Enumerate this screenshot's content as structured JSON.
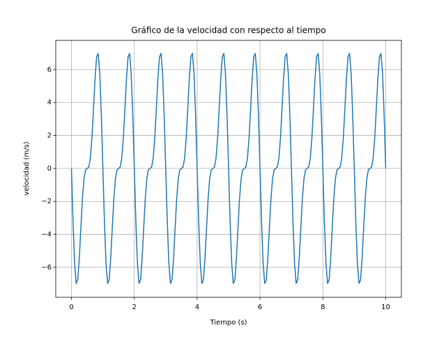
{
  "chart_data": {
    "type": "line",
    "title": "Gráfico de la velocidad con respecto al tiempo",
    "xlabel": "Tiempo (s)",
    "ylabel": "velocidad (m/s)",
    "xlim": [
      -0.5,
      10.5
    ],
    "ylim": [
      -7.82,
      7.77
    ],
    "xticks": [
      0,
      2,
      4,
      6,
      8,
      10
    ],
    "yticks": [
      {
        "value": -6,
        "label": "−6"
      },
      {
        "value": -4,
        "label": "−4"
      },
      {
        "value": -2,
        "label": "−2"
      },
      0,
      2,
      4,
      6
    ],
    "grid": true,
    "x": [
      0,
      0.05,
      0.1,
      0.15,
      0.2,
      0.25,
      0.3,
      0.35,
      0.4,
      0.45,
      0.5,
      0.55,
      0.6,
      0.65,
      0.7,
      0.75,
      0.8,
      0.85,
      0.9,
      0.95,
      1,
      1.05,
      1.1,
      1.15,
      1.2,
      1.25,
      1.3,
      1.35,
      1.4,
      1.45,
      1.5,
      1.55,
      1.6,
      1.65,
      1.7,
      1.75,
      1.8,
      1.85,
      1.9,
      1.95,
      2,
      2.05,
      2.1,
      2.15,
      2.2,
      2.25,
      2.3,
      2.35,
      2.4,
      2.45,
      2.5,
      2.55,
      2.6,
      2.65,
      2.7,
      2.75,
      2.8,
      2.85,
      2.9,
      2.95,
      3,
      3.05,
      3.1,
      3.15,
      3.2,
      3.25,
      3.3,
      3.35,
      3.4,
      3.45,
      3.5,
      3.55,
      3.6,
      3.65,
      3.7,
      3.75,
      3.8,
      3.85,
      3.9,
      3.95,
      4,
      4.05,
      4.1,
      4.15,
      4.2,
      4.25,
      4.3,
      4.35,
      4.4,
      4.45,
      4.5,
      4.55,
      4.6,
      4.65,
      4.7,
      4.75,
      4.8,
      4.85,
      4.9,
      4.95,
      5,
      5.05,
      5.1,
      5.15,
      5.2,
      5.25,
      5.3,
      5.35,
      5.4,
      5.45,
      5.5,
      5.55,
      5.6,
      5.65,
      5.7,
      5.75,
      5.8,
      5.85,
      5.9,
      5.95,
      6,
      6.05,
      6.1,
      6.15,
      6.2,
      6.25,
      6.3,
      6.35,
      6.4,
      6.45,
      6.5,
      6.55,
      6.6,
      6.65,
      6.7,
      6.75,
      6.8,
      6.85,
      6.9,
      6.95,
      7,
      7.05,
      7.1,
      7.15,
      7.2,
      7.25,
      7.3,
      7.35,
      7.4,
      7.45,
      7.5,
      7.55,
      7.6,
      7.65,
      7.7,
      7.75,
      7.8,
      7.85,
      7.9,
      7.95,
      8,
      8.05,
      8.1,
      8.15,
      8.2,
      8.25,
      8.3,
      8.35,
      8.4,
      8.45,
      8.5,
      8.55,
      8.6,
      8.65,
      8.7,
      8.75,
      8.8,
      8.85,
      8.9,
      8.95,
      9,
      9.05,
      9.1,
      9.15,
      9.2,
      9.25,
      9.3,
      9.35,
      9.4,
      9.45,
      9.5,
      9.55,
      9.6,
      9.65,
      9.7,
      9.75,
      9.8,
      9.85,
      9.9,
      9.95,
      10
    ],
    "series": [
      {
        "color": "#1f77b4",
        "values": [
          0,
          -3.27,
          -5.77,
          -6.98,
          -6.76,
          -5.43,
          -3.57,
          -1.81,
          -0.61,
          -0.08,
          0,
          0.08,
          0.61,
          1.81,
          3.57,
          5.43,
          6.76,
          6.98,
          5.77,
          3.27,
          0,
          -3.27,
          -5.77,
          -6.98,
          -6.76,
          -5.43,
          -3.57,
          -1.81,
          -0.61,
          -0.08,
          0,
          0.08,
          0.61,
          1.81,
          3.57,
          5.43,
          6.76,
          6.98,
          5.77,
          3.27,
          0,
          -3.27,
          -5.77,
          -6.98,
          -6.76,
          -5.43,
          -3.57,
          -1.81,
          -0.61,
          -0.08,
          0,
          0.08,
          0.61,
          1.81,
          3.57,
          5.43,
          6.76,
          6.98,
          5.77,
          3.27,
          0,
          -3.27,
          -5.77,
          -6.98,
          -6.76,
          -5.43,
          -3.57,
          -1.81,
          -0.61,
          -0.08,
          0,
          0.08,
          0.61,
          1.81,
          3.57,
          5.43,
          6.76,
          6.98,
          5.77,
          3.27,
          0,
          -3.27,
          -5.77,
          -6.98,
          -6.76,
          -5.43,
          -3.57,
          -1.81,
          -0.61,
          -0.08,
          0,
          0.08,
          0.61,
          1.81,
          3.57,
          5.43,
          6.76,
          6.98,
          5.77,
          3.27,
          0,
          -3.27,
          -5.77,
          -6.98,
          -6.76,
          -5.43,
          -3.57,
          -1.81,
          -0.61,
          -0.08,
          0,
          0.08,
          0.61,
          1.81,
          3.57,
          5.43,
          6.76,
          6.98,
          5.77,
          3.27,
          0,
          -3.27,
          -5.77,
          -6.98,
          -6.76,
          -5.43,
          -3.57,
          -1.81,
          -0.61,
          -0.08,
          0,
          0.08,
          0.61,
          1.81,
          3.57,
          5.43,
          6.76,
          6.98,
          5.77,
          3.27,
          0,
          -3.27,
          -5.77,
          -6.98,
          -6.76,
          -5.43,
          -3.57,
          -1.81,
          -0.61,
          -0.08,
          0,
          0.08,
          0.61,
          1.81,
          3.57,
          5.43,
          6.76,
          6.98,
          5.77,
          3.27,
          0,
          -3.27,
          -5.77,
          -6.98,
          -6.76,
          -5.43,
          -3.57,
          -1.81,
          -0.61,
          -0.08,
          0,
          0.08,
          0.61,
          1.81,
          3.57,
          5.43,
          6.76,
          6.98,
          5.77,
          3.27,
          0,
          -3.27,
          -5.77,
          -6.98,
          -6.76,
          -5.43,
          -3.57,
          -1.81,
          -0.61,
          -0.08,
          0,
          0.08,
          0.61,
          1.81,
          3.57,
          5.43,
          6.76,
          6.98,
          5.77,
          3.27,
          0
        ]
      }
    ]
  }
}
